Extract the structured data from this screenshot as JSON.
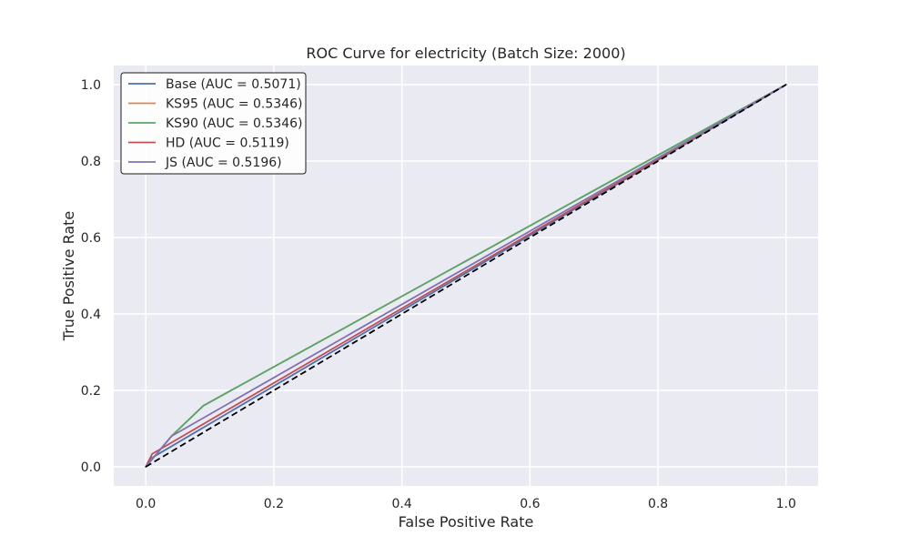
{
  "chart_data": {
    "type": "line",
    "title": "ROC Curve for electricity (Batch Size: 2000)",
    "xlabel": "False Positive Rate",
    "ylabel": "True Positive Rate",
    "xlim": [
      -0.05,
      1.05
    ],
    "ylim": [
      -0.05,
      1.05
    ],
    "grid": true,
    "legend_position": "upper-left",
    "background_color": "#eaeaf2",
    "grid_color": "#ffffff",
    "xticks": [
      0.0,
      0.2,
      0.4,
      0.6,
      0.8,
      1.0
    ],
    "xtick_labels": [
      "0.0",
      "0.2",
      "0.4",
      "0.6",
      "0.8",
      "1.0"
    ],
    "yticks": [
      0.0,
      0.2,
      0.4,
      0.6,
      0.8,
      1.0
    ],
    "ytick_labels": [
      "0.0",
      "0.2",
      "0.4",
      "0.6",
      "0.8",
      "1.0"
    ],
    "series": [
      {
        "name": "Base (AUC = 0.5071)",
        "color": "#4c72b0",
        "x": [
          0,
          0.01,
          1
        ],
        "y": [
          0,
          0.024,
          1
        ]
      },
      {
        "name": "KS95 (AUC = 0.5346)",
        "color": "#dd8452",
        "x": [
          0,
          0.04,
          0.09,
          1
        ],
        "y": [
          0,
          0.08,
          0.16,
          1
        ]
      },
      {
        "name": "KS90 (AUC = 0.5346)",
        "color": "#55a868",
        "x": [
          0,
          0.04,
          0.09,
          1
        ],
        "y": [
          0,
          0.08,
          0.16,
          1
        ]
      },
      {
        "name": "HD (AUC = 0.5119)",
        "color": "#c44e52",
        "x": [
          0,
          0.01,
          1
        ],
        "y": [
          0,
          0.034,
          1
        ]
      },
      {
        "name": "JS (AUC = 0.5196)",
        "color": "#8172b3",
        "x": [
          0,
          0.04,
          1
        ],
        "y": [
          0,
          0.08,
          1
        ]
      }
    ],
    "reference_line": {
      "color": "#000000",
      "style": "dashed",
      "x": [
        0,
        1
      ],
      "y": [
        0,
        1
      ]
    }
  }
}
